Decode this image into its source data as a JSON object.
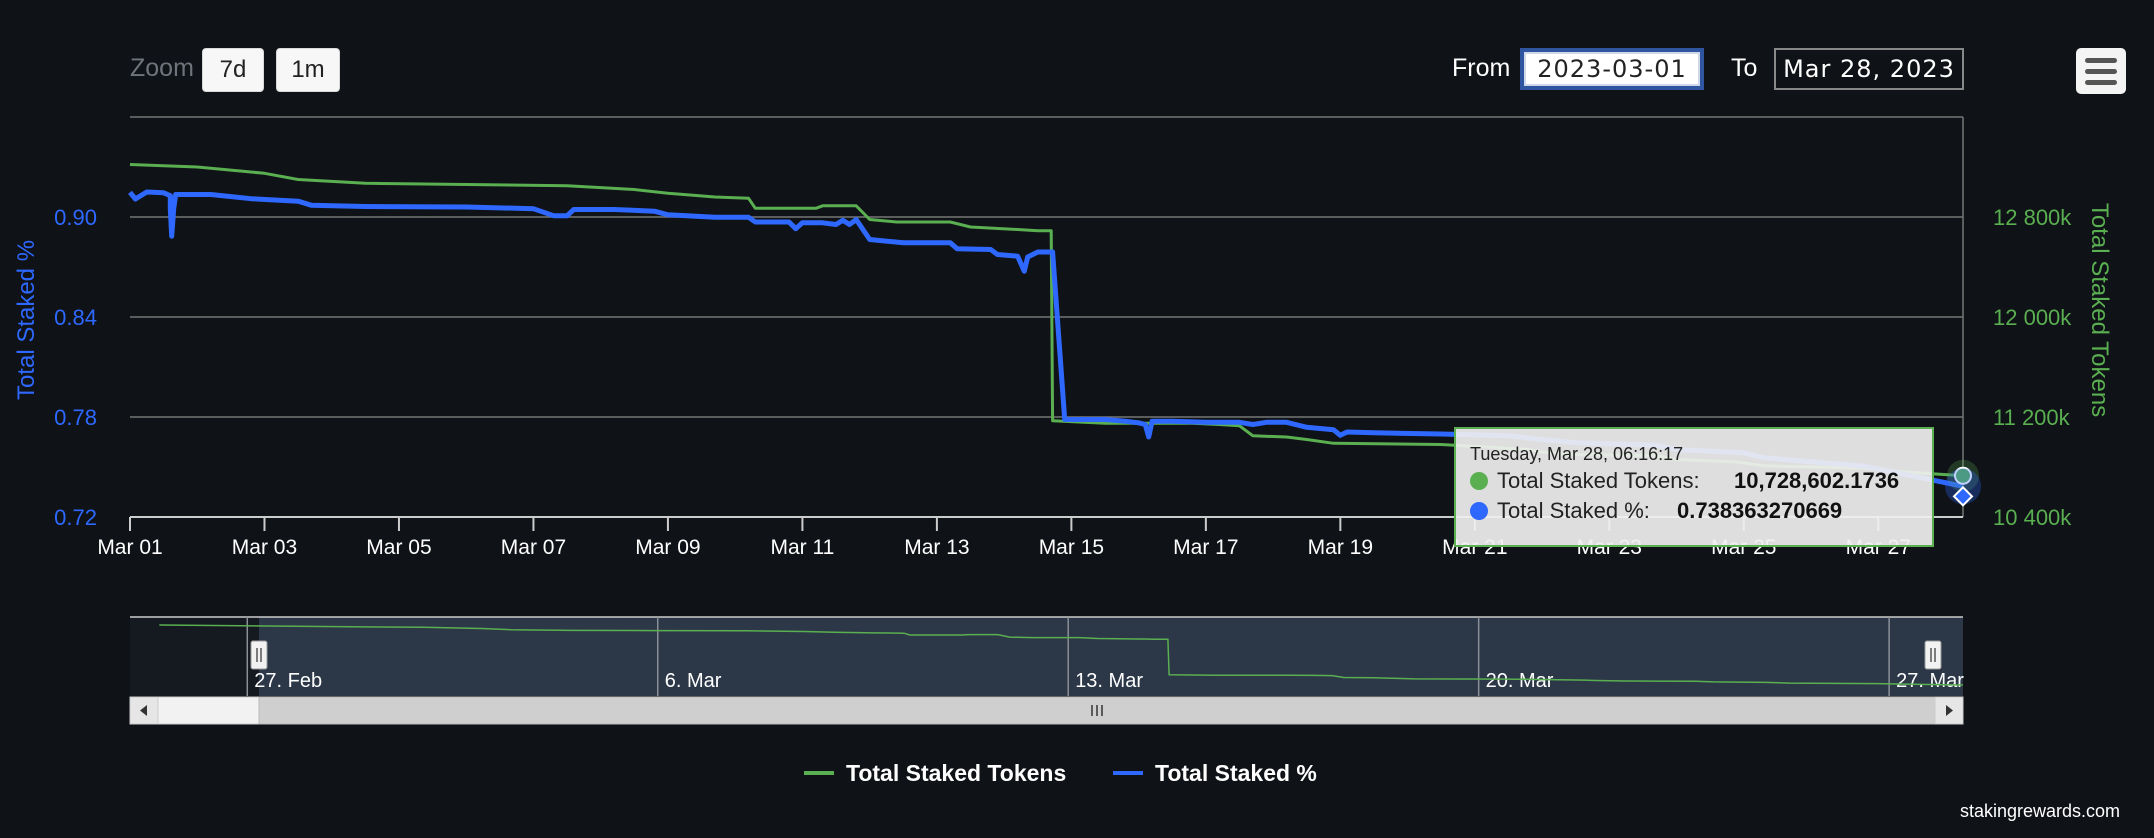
{
  "toolbar": {
    "zoom_label": "Zoom",
    "zoom_buttons": [
      "7d",
      "1m"
    ],
    "from_label": "From",
    "from_value": "2023-03-01",
    "to_label": "To",
    "to_value": "Mar 28, 2023"
  },
  "credit": "stakingrewards.com",
  "colors": {
    "tokens": "#5aaf50",
    "percent": "#2e68ff",
    "background": "#0f1217",
    "grid": "#777777"
  },
  "icons": {
    "menu": "hamburger-menu-icon"
  },
  "chart_data": {
    "type": "line",
    "x_ticks": [
      "Mar 01",
      "Mar 03",
      "Mar 05",
      "Mar 07",
      "Mar 09",
      "Mar 11",
      "Mar 13",
      "Mar 15",
      "Mar 17",
      "Mar 19",
      "Mar 21",
      "Mar 23",
      "Mar 25",
      "Mar 27"
    ],
    "x_range_days": [
      0,
      27.26
    ],
    "y_left": {
      "label": "Total Staked %",
      "ticks": [
        "0.90",
        "0.84",
        "0.78",
        "0.72"
      ],
      "range": [
        0.72,
        0.96
      ]
    },
    "y_right": {
      "label": "Total Staked Tokens",
      "ticks": [
        "12 800k",
        "12 000k",
        "11 200k",
        "10 400k"
      ],
      "range": [
        10400000,
        13600000
      ]
    },
    "series": [
      {
        "name": "Total Staked Tokens",
        "axis": "right",
        "points": [
          [
            0,
            13220000
          ],
          [
            1,
            13200000
          ],
          [
            2,
            13150000
          ],
          [
            2.5,
            13100000
          ],
          [
            3.5,
            13070000
          ],
          [
            5,
            13060000
          ],
          [
            6.5,
            13050000
          ],
          [
            7.5,
            13020000
          ],
          [
            8,
            12990000
          ],
          [
            8.7,
            12960000
          ],
          [
            9.2,
            12950000
          ],
          [
            9.3,
            12870000
          ],
          [
            10.2,
            12870000
          ],
          [
            10.3,
            12890000
          ],
          [
            10.8,
            12890000
          ],
          [
            11,
            12780000
          ],
          [
            11.4,
            12760000
          ],
          [
            12.2,
            12760000
          ],
          [
            12.5,
            12720000
          ],
          [
            13.2,
            12700000
          ],
          [
            13.5,
            12690000
          ],
          [
            13.7,
            12690000
          ],
          [
            13.72,
            11170000
          ],
          [
            14.5,
            11150000
          ],
          [
            15.8,
            11150000
          ],
          [
            16.2,
            11140000
          ],
          [
            16.5,
            11130000
          ],
          [
            16.7,
            11050000
          ],
          [
            17.2,
            11040000
          ],
          [
            17.5,
            11020000
          ],
          [
            17.9,
            10990000
          ],
          [
            19.5,
            10980000
          ],
          [
            20.8,
            10940000
          ],
          [
            21,
            10920000
          ],
          [
            21.5,
            10900000
          ],
          [
            22.7,
            10890000
          ],
          [
            23,
            10860000
          ],
          [
            23.9,
            10840000
          ],
          [
            24.3,
            10810000
          ],
          [
            25.8,
            10790000
          ],
          [
            26.4,
            10760000
          ],
          [
            27.26,
            10730000
          ]
        ]
      },
      {
        "name": "Total Staked %",
        "axis": "left",
        "points": [
          [
            0,
            0.9148
          ],
          [
            0.08,
            0.9108
          ],
          [
            0.25,
            0.915
          ],
          [
            0.5,
            0.9145
          ],
          [
            0.6,
            0.9128
          ],
          [
            0.6,
            0.905
          ],
          [
            0.62,
            0.8885
          ],
          [
            0.65,
            0.905
          ],
          [
            0.68,
            0.9135
          ],
          [
            1.2,
            0.9135
          ],
          [
            1.8,
            0.911
          ],
          [
            2.5,
            0.9095
          ],
          [
            2.7,
            0.907
          ],
          [
            3.5,
            0.9063
          ],
          [
            5,
            0.906
          ],
          [
            6,
            0.905
          ],
          [
            6.3,
            0.9008
          ],
          [
            6.5,
            0.9008
          ],
          [
            6.6,
            0.9045
          ],
          [
            7.2,
            0.9045
          ],
          [
            7.8,
            0.9035
          ],
          [
            8,
            0.9013
          ],
          [
            8.7,
            0.8998
          ],
          [
            9.2,
            0.8998
          ],
          [
            9.3,
            0.897
          ],
          [
            9.8,
            0.897
          ],
          [
            9.9,
            0.893
          ],
          [
            10,
            0.8965
          ],
          [
            10.3,
            0.8965
          ],
          [
            10.5,
            0.8955
          ],
          [
            10.6,
            0.898
          ],
          [
            10.7,
            0.8955
          ],
          [
            10.8,
            0.8985
          ],
          [
            11,
            0.8865
          ],
          [
            11.5,
            0.8845
          ],
          [
            12.2,
            0.8845
          ],
          [
            12.3,
            0.881
          ],
          [
            12.8,
            0.8805
          ],
          [
            12.9,
            0.8775
          ],
          [
            13.2,
            0.8765
          ],
          [
            13.3,
            0.8675
          ],
          [
            13.35,
            0.876
          ],
          [
            13.5,
            0.879
          ],
          [
            13.72,
            0.879
          ],
          [
            13.9,
            0.7785
          ],
          [
            14.5,
            0.7785
          ],
          [
            14.8,
            0.7775
          ],
          [
            15,
            0.7765
          ],
          [
            15.1,
            0.7755
          ],
          [
            15.15,
            0.768
          ],
          [
            15.2,
            0.7775
          ],
          [
            15.5,
            0.7775
          ],
          [
            16,
            0.7768
          ],
          [
            16.5,
            0.7768
          ],
          [
            16.7,
            0.7755
          ],
          [
            16.9,
            0.7768
          ],
          [
            17.2,
            0.7768
          ],
          [
            17.5,
            0.7738
          ],
          [
            17.9,
            0.7723
          ],
          [
            18,
            0.769
          ],
          [
            18.1,
            0.771
          ],
          [
            18.5,
            0.7705
          ],
          [
            19.5,
            0.7698
          ],
          [
            20.5,
            0.7688
          ],
          [
            21,
            0.7665
          ],
          [
            21.5,
            0.7645
          ],
          [
            22.7,
            0.763
          ],
          [
            23,
            0.7605
          ],
          [
            24,
            0.7585
          ],
          [
            24.3,
            0.7555
          ],
          [
            25.8,
            0.7505
          ],
          [
            26.4,
            0.7455
          ],
          [
            27.26,
            0.7384
          ]
        ]
      }
    ],
    "navigator": {
      "ticks": [
        "27. Feb",
        "6. Mar",
        "13. Mar",
        "20. Mar",
        "27. Mar"
      ]
    },
    "legend": [
      "Total Staked Tokens",
      "Total Staked %"
    ],
    "legend_position": "bottom-center",
    "tooltip": {
      "header": "Tuesday, Mar 28, 06:16:17",
      "rows": [
        {
          "label": "Total Staked Tokens:",
          "value": "10,728,602.1736",
          "color": "#5aaf50"
        },
        {
          "label": "Total Staked %:",
          "value": "0.738363270669",
          "color": "#2e68ff"
        }
      ]
    }
  }
}
